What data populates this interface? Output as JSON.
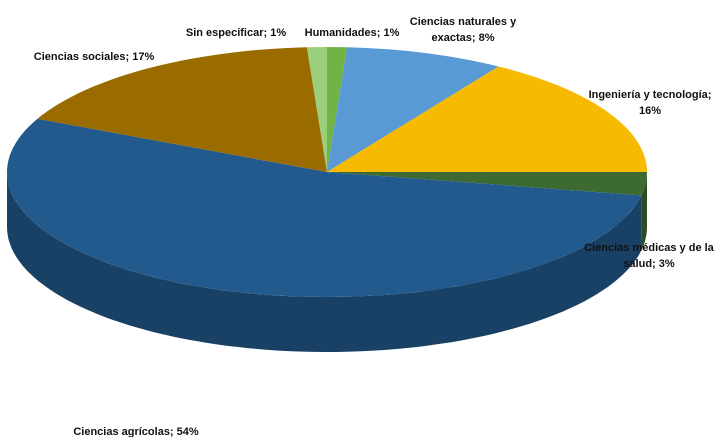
{
  "chart_data": {
    "type": "pie3d",
    "categories": [
      "Humanidades",
      "Ciencias naturales y exactas",
      "Ingeniería y tecnología",
      "Ciencias médicas y de la salud",
      "Ciencias agrícolas",
      "Ciencias sociales",
      "Sin especificar"
    ],
    "values": [
      1,
      8,
      16,
      3,
      54,
      17,
      1
    ],
    "value_labels": [
      [
        "Humanidades; 1%"
      ],
      [
        "Ciencias naturales y",
        "exactas; 8%"
      ],
      [
        "Ingeniería y tecnología;",
        "16%"
      ],
      [
        "Ciencias médicas y de la",
        "salud; 3%"
      ],
      [
        "Ciencias agrícolas; 54%"
      ],
      [
        "Ciencias sociales; 17%"
      ],
      [
        "Sin especificar; 1%"
      ]
    ],
    "colors": [
      "#70b445",
      "#5a9ad4",
      "#f6bb00",
      "#3c6a31",
      "#235a8e",
      "#9a6c00",
      "#9ccf7c"
    ]
  }
}
